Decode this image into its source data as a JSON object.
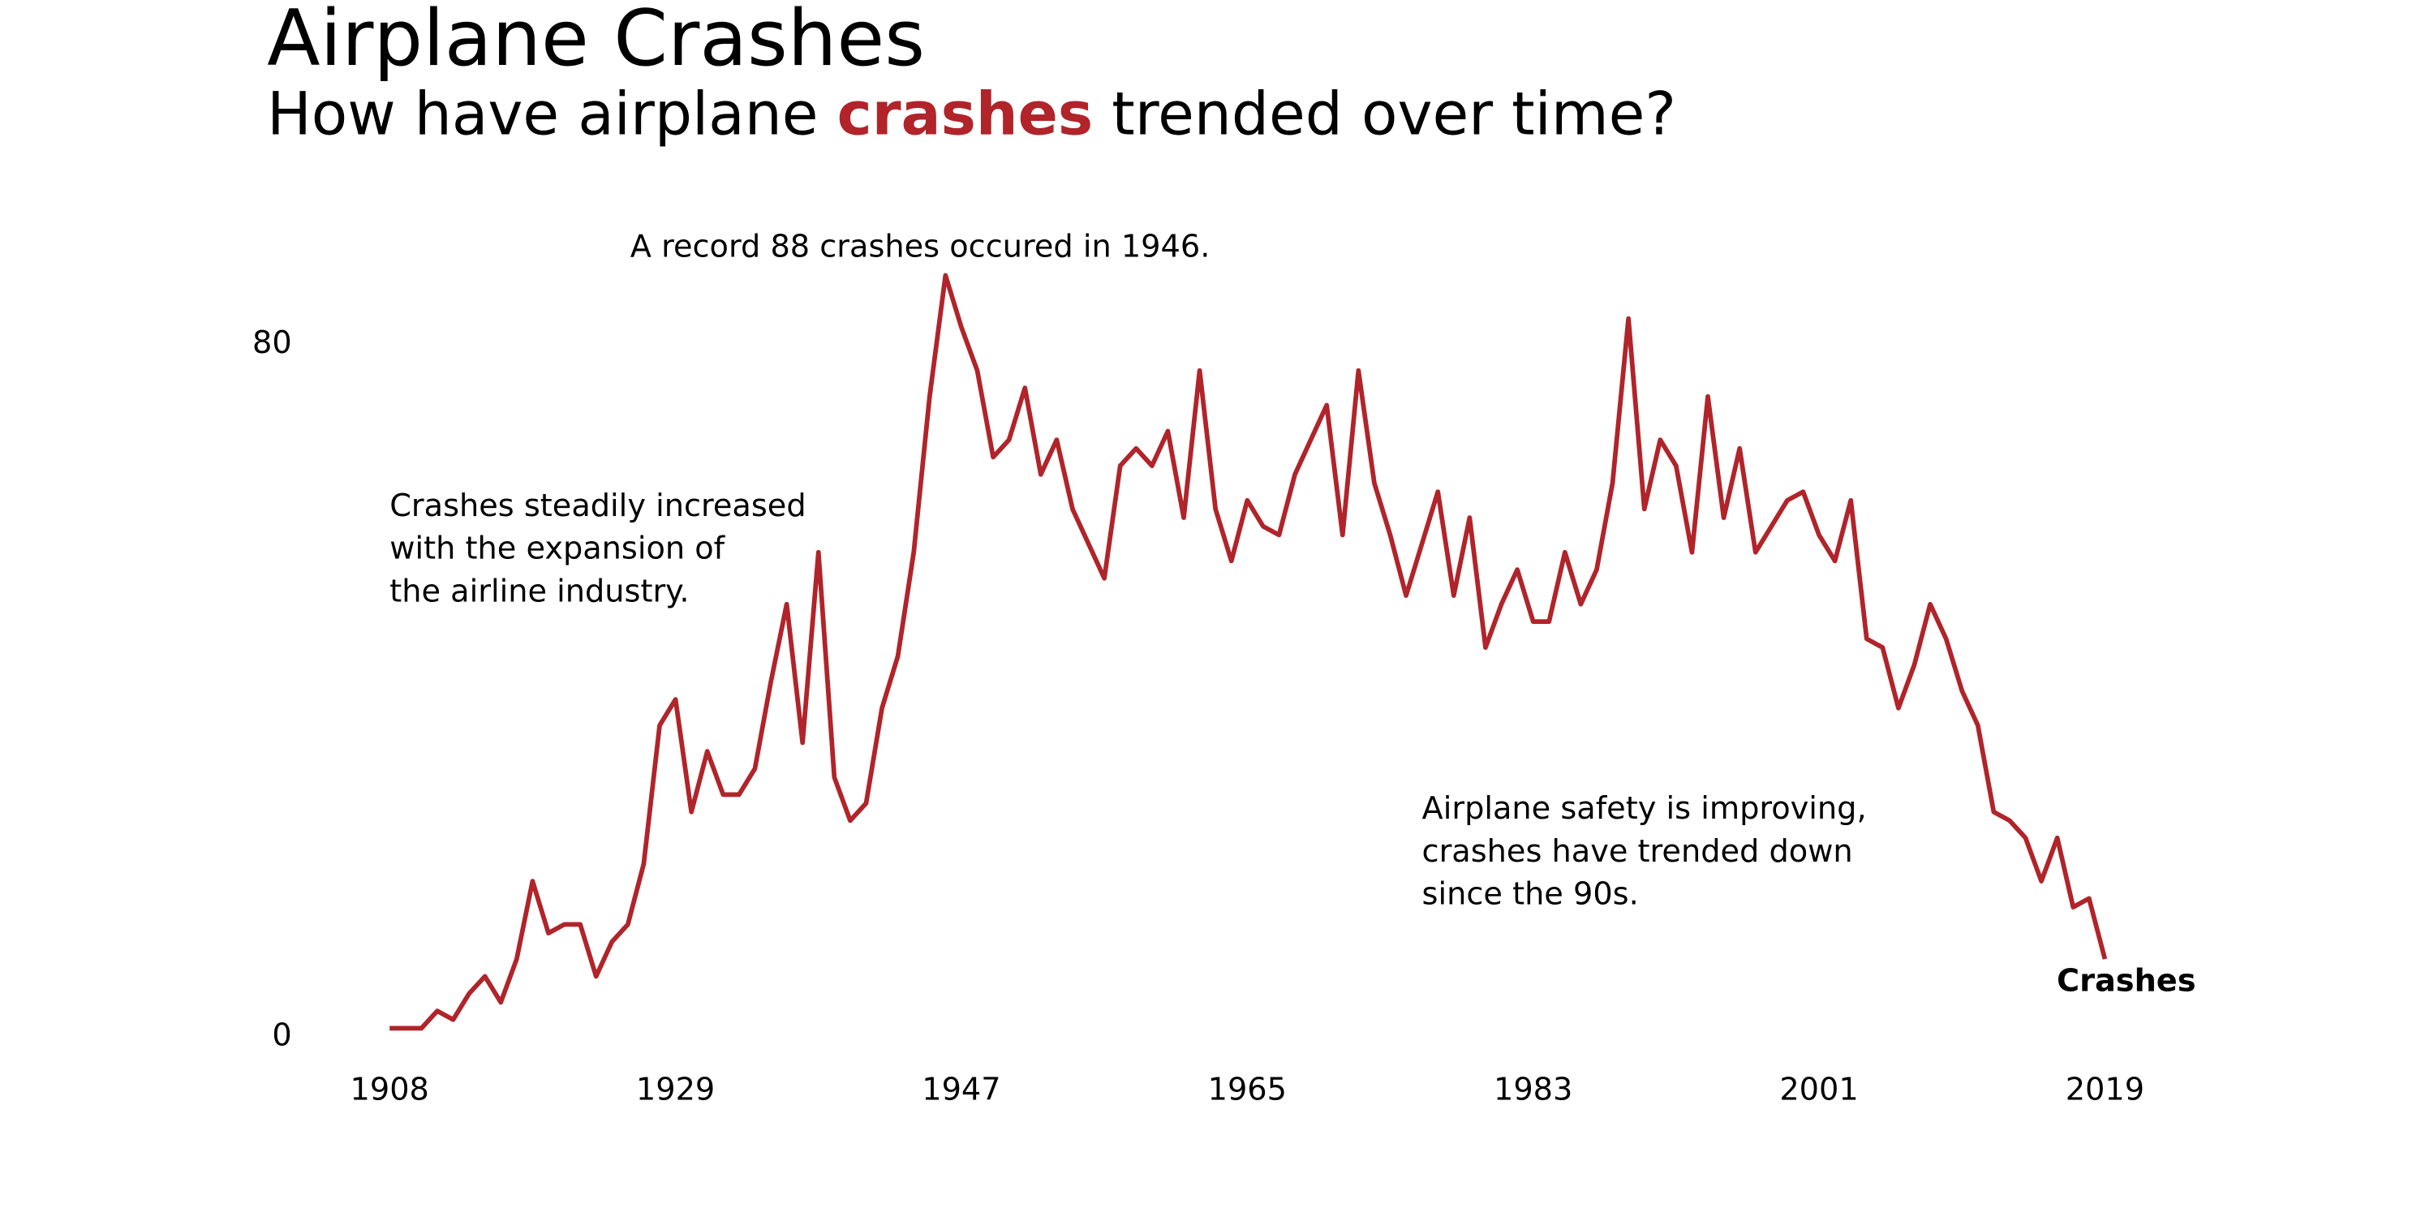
{
  "chart_data": {
    "type": "line",
    "title": "Airplane Crashes",
    "subtitle": [
      "How have airplane",
      "crashes",
      "trended over time?"
    ],
    "annotations": [
      {
        "lines": [
          "A record 88 crashes occured in 1946."
        ]
      },
      {
        "lines": [
          "Crashes steadily increased",
          "with the expansion of",
          "the airline industry."
        ]
      },
      {
        "lines": [
          "Airplane safety is improving,",
          "crashes have trended down",
          "since the 90s."
        ]
      }
    ],
    "categories": [
      "1908",
      null,
      null,
      null,
      null,
      null,
      null,
      null,
      null,
      null,
      null,
      null,
      null,
      null,
      null,
      null,
      null,
      null,
      "1929",
      null,
      null,
      null,
      null,
      null,
      null,
      null,
      null,
      null,
      null,
      null,
      null,
      null,
      null,
      null,
      null,
      null,
      "1947",
      null,
      null,
      null,
      null,
      null,
      null,
      null,
      null,
      null,
      null,
      null,
      null,
      null,
      null,
      null,
      null,
      null,
      "1965",
      null,
      null,
      null,
      null,
      null,
      null,
      null,
      null,
      null,
      null,
      null,
      null,
      null,
      null,
      null,
      null,
      null,
      "1983",
      null,
      null,
      null,
      null,
      null,
      null,
      null,
      null,
      null,
      null,
      null,
      null,
      null,
      null,
      null,
      null,
      null,
      "2001",
      null,
      null,
      null,
      null,
      null,
      null,
      null,
      null,
      null,
      null,
      null,
      null,
      null,
      null,
      null,
      null,
      null,
      "2019"
    ],
    "series": [
      {
        "name": "Crashes",
        "color": "#b0242a",
        "values": [
          1,
          1,
          1,
          3,
          2,
          5,
          7,
          4,
          9,
          18,
          12,
          13,
          13,
          7,
          11,
          13,
          20,
          36,
          39,
          26,
          33,
          28,
          28,
          31,
          41,
          50,
          34,
          56,
          30,
          25,
          27,
          38,
          44,
          56,
          74,
          88,
          82,
          77,
          67,
          69,
          75,
          65,
          69,
          61,
          57,
          53,
          66,
          68,
          66,
          70,
          60,
          77,
          61,
          55,
          62,
          59,
          58,
          65,
          69,
          73,
          58,
          77,
          64,
          58,
          51,
          57,
          63,
          51,
          60,
          45,
          50,
          54,
          48,
          48,
          56,
          50,
          54,
          64,
          83,
          61,
          69,
          66,
          56,
          74,
          60,
          68,
          56,
          59,
          62,
          63,
          58,
          55,
          62,
          46,
          45,
          38,
          43,
          50,
          46,
          40,
          36,
          26,
          25,
          23,
          18,
          23,
          15,
          16,
          9
        ]
      }
    ],
    "ylim": [
      0,
      80
    ],
    "yticks": [
      0,
      80
    ],
    "grid": false
  }
}
